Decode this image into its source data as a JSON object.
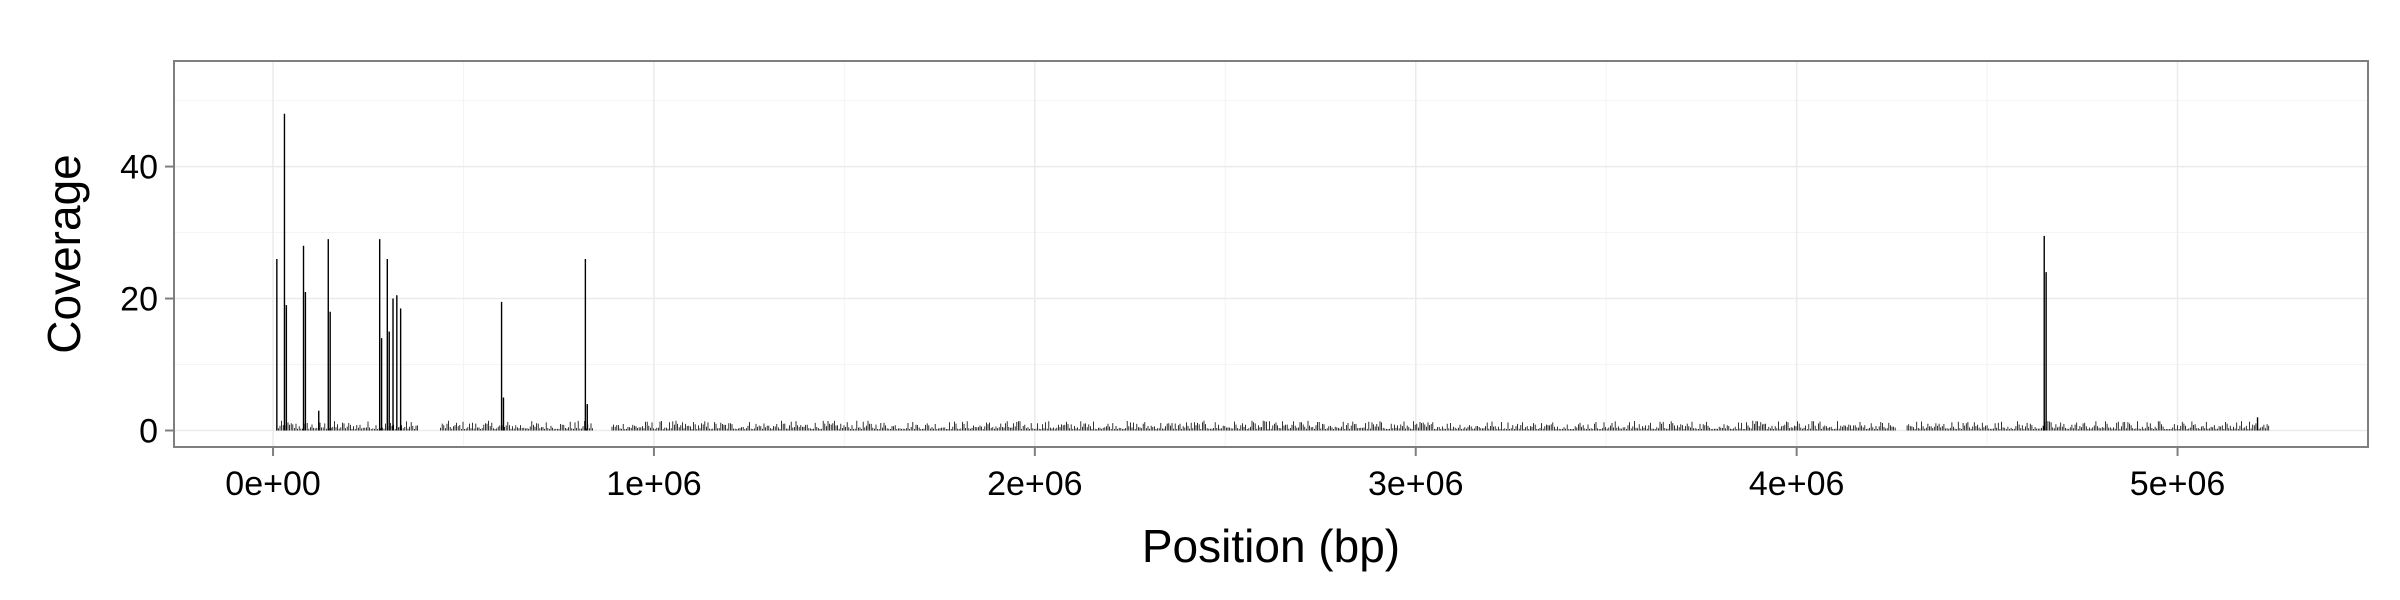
{
  "chart_data": {
    "type": "bar",
    "title": "",
    "xlabel": "Position (bp)",
    "ylabel": "Coverage",
    "xlim": [
      -260000,
      5500000
    ],
    "ylim": [
      -2.5,
      56
    ],
    "x_ticks": [
      {
        "value": 0,
        "label": "0e+00"
      },
      {
        "value": 1000000,
        "label": "1e+06"
      },
      {
        "value": 2000000,
        "label": "2e+06"
      },
      {
        "value": 3000000,
        "label": "3e+06"
      },
      {
        "value": 4000000,
        "label": "4e+06"
      },
      {
        "value": 5000000,
        "label": "5e+06"
      }
    ],
    "y_ticks": [
      {
        "value": 0,
        "label": "0"
      },
      {
        "value": 20,
        "label": "20"
      },
      {
        "value": 40,
        "label": "40"
      }
    ],
    "grid": true,
    "legend": "none",
    "bar_color": "#000000",
    "background": "#ffffff",
    "grid_color": "#ebebeb",
    "peaks": [
      {
        "x": 10000,
        "y": 26
      },
      {
        "x": 30000,
        "y": 48
      },
      {
        "x": 35000,
        "y": 19
      },
      {
        "x": 80000,
        "y": 28
      },
      {
        "x": 85000,
        "y": 21
      },
      {
        "x": 120000,
        "y": 3
      },
      {
        "x": 145000,
        "y": 29
      },
      {
        "x": 150000,
        "y": 18
      },
      {
        "x": 280000,
        "y": 29
      },
      {
        "x": 285000,
        "y": 14
      },
      {
        "x": 300000,
        "y": 26
      },
      {
        "x": 305000,
        "y": 15
      },
      {
        "x": 315000,
        "y": 20
      },
      {
        "x": 325000,
        "y": 20.5
      },
      {
        "x": 335000,
        "y": 18.5
      },
      {
        "x": 600000,
        "y": 19.5
      },
      {
        "x": 605000,
        "y": 5
      },
      {
        "x": 820000,
        "y": 26
      },
      {
        "x": 825000,
        "y": 4
      },
      {
        "x": 4650000,
        "y": 29.5
      },
      {
        "x": 4655000,
        "y": 24
      },
      {
        "x": 5210000,
        "y": 2
      }
    ],
    "background_coverage": {
      "segments": [
        [
          10000,
          380000
        ],
        [
          440000,
          840000
        ],
        [
          890000,
          4260000
        ],
        [
          4290000,
          5240000
        ]
      ],
      "typical_max": 1.5
    }
  }
}
